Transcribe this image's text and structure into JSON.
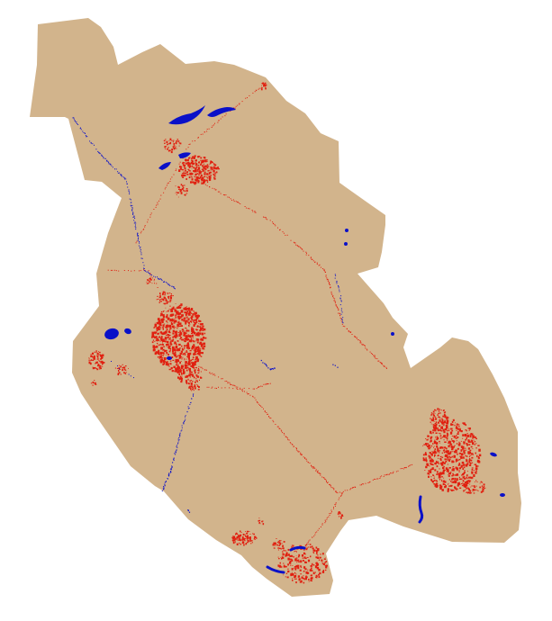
{
  "map": {
    "type": "land-cover",
    "colors": {
      "land": "#D2B48C",
      "urban": "#E02010",
      "water": "#0A10C8",
      "background": "#FFFFFF"
    }
  }
}
